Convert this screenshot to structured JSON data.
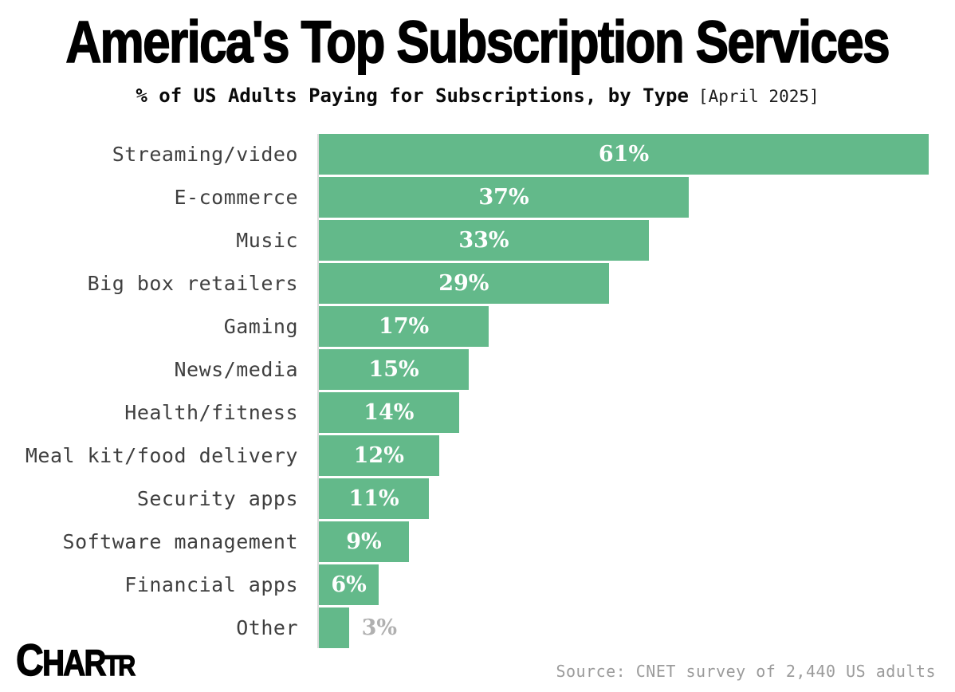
{
  "header": {
    "title": "America's Top Subscription Services",
    "subtitle": "% of US Adults Paying for Subscriptions, by Type",
    "subtitle_date": "[April 2025]"
  },
  "footer": {
    "source": "Source: CNET survey of 2,440 US adults",
    "logo_parts": {
      "p1": "C",
      "p2": "HAR",
      "p3": "TR"
    }
  },
  "colors": {
    "bar": "#63b98a",
    "value_label_inside": "#ffffff",
    "value_label_outside": "#b0b0b0",
    "category_label": "#3f3f3f",
    "axis_line": "#dcdcdc",
    "source_text": "#9b9b9b",
    "title_text": "#000000"
  },
  "chart_data": {
    "type": "bar",
    "orientation": "horizontal",
    "title": "America's Top Subscription Services",
    "subtitle": "% of US Adults Paying for Subscriptions, by Type [April 2025]",
    "xlabel": "",
    "ylabel": "",
    "xlim": [
      0,
      61
    ],
    "grid": false,
    "legend": false,
    "value_format": "percent",
    "categories": [
      "Streaming/video",
      "E-commerce",
      "Music",
      "Big box retailers",
      "Gaming",
      "News/media",
      "Health/fitness",
      "Meal kit/food delivery",
      "Security apps",
      "Software management",
      "Financial apps",
      "Other"
    ],
    "values": [
      61,
      37,
      33,
      29,
      17,
      15,
      14,
      12,
      11,
      9,
      6,
      3
    ],
    "bars": [
      {
        "category": "Streaming/video",
        "value": 61,
        "label": "61%",
        "label_placement": "inside"
      },
      {
        "category": "E-commerce",
        "value": 37,
        "label": "37%",
        "label_placement": "inside"
      },
      {
        "category": "Music",
        "value": 33,
        "label": "33%",
        "label_placement": "inside"
      },
      {
        "category": "Big box retailers",
        "value": 29,
        "label": "29%",
        "label_placement": "inside"
      },
      {
        "category": "Gaming",
        "value": 17,
        "label": "17%",
        "label_placement": "inside"
      },
      {
        "category": "News/media",
        "value": 15,
        "label": "15%",
        "label_placement": "inside"
      },
      {
        "category": "Health/fitness",
        "value": 14,
        "label": "14%",
        "label_placement": "inside"
      },
      {
        "category": "Meal kit/food delivery",
        "value": 12,
        "label": "12%",
        "label_placement": "inside"
      },
      {
        "category": "Security apps",
        "value": 11,
        "label": "11%",
        "label_placement": "inside"
      },
      {
        "category": "Software management",
        "value": 9,
        "label": "9%",
        "label_placement": "inside"
      },
      {
        "category": "Financial apps",
        "value": 6,
        "label": "6%",
        "label_placement": "inside"
      },
      {
        "category": "Other",
        "value": 3,
        "label": "3%",
        "label_placement": "outside"
      }
    ]
  }
}
